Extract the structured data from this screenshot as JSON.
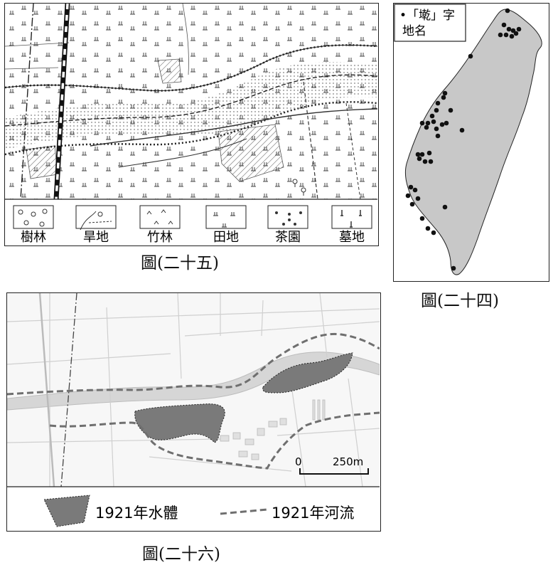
{
  "figure25": {
    "caption": "圖(二十五)",
    "legend": [
      {
        "symbol": "tree-grove-symbol",
        "label": "樹林"
      },
      {
        "symbol": "dry-field-symbol",
        "label": "旱地"
      },
      {
        "symbol": "bamboo-symbol",
        "label": "竹林"
      },
      {
        "symbol": "paddy-symbol",
        "label": "田地"
      },
      {
        "symbol": "tea-garden-symbol",
        "label": "茶園"
      },
      {
        "symbol": "cemetery-symbol",
        "label": "墓地"
      }
    ]
  },
  "figure24": {
    "caption": "圖(二十四)",
    "legend_line1": "•「墘」字",
    "legend_line2": "地名",
    "island_fill": "#c8c8c8",
    "dot_color": "#111111"
  },
  "figure26": {
    "caption": "圖(二十六)",
    "scale_start": "0",
    "scale_end": "250m",
    "legend_water": "1921年水體",
    "legend_river": "1921年河流",
    "water_fill": "#7a7a7a",
    "river_color": "#6f6f6f"
  }
}
